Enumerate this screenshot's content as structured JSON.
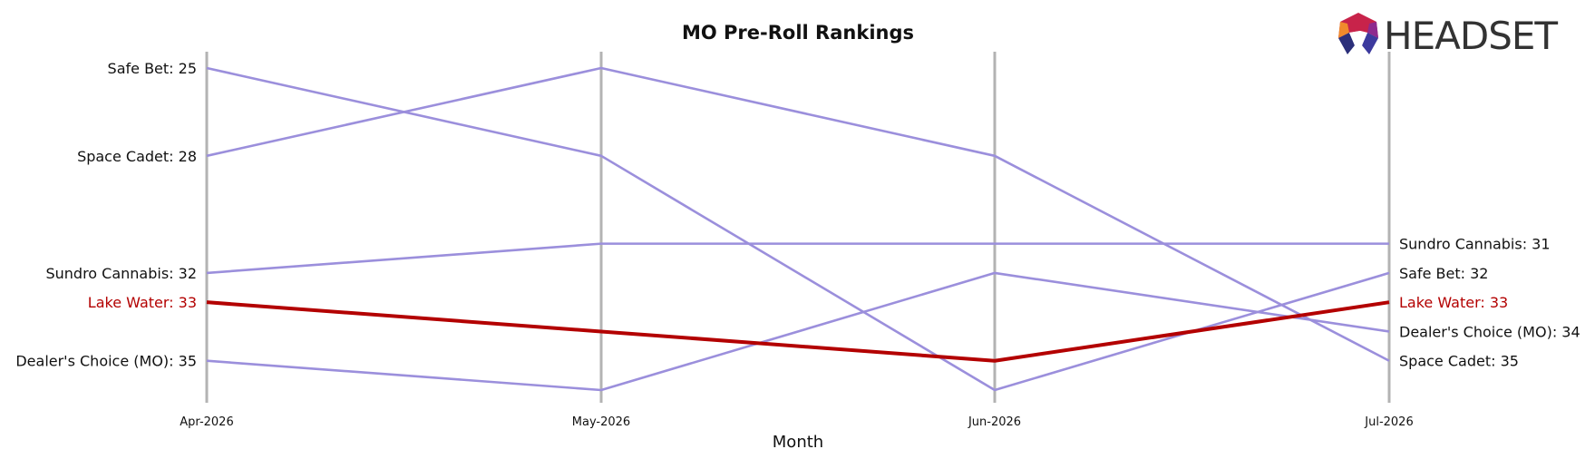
{
  "chart_data": {
    "type": "line",
    "title": "MO Pre-Roll Rankings",
    "xlabel": "Month",
    "ylabel": "",
    "x": [
      "Apr-2026",
      "May-2026",
      "Jun-2026",
      "Jul-2026"
    ],
    "ylim": [
      36.5,
      24.5
    ],
    "y_inverted": true,
    "grid": "vertical lines at each month",
    "highlight_series": "Lake Water",
    "colors": {
      "default": "#9b8fdc",
      "highlight": "#b30000",
      "vline": "#b3b3b3",
      "text": "#111111"
    },
    "series": [
      {
        "name": "Safe Bet",
        "values": [
          25,
          28,
          36,
          32
        ]
      },
      {
        "name": "Space Cadet",
        "values": [
          28,
          25,
          28,
          35
        ]
      },
      {
        "name": "Sundro Cannabis",
        "values": [
          32,
          31,
          31,
          31
        ]
      },
      {
        "name": "Lake Water",
        "values": [
          33,
          34,
          35,
          33
        ]
      },
      {
        "name": "Dealer's Choice (MO)",
        "values": [
          35,
          36,
          32,
          34
        ]
      }
    ],
    "left_labels": [
      {
        "series": "Safe Bet",
        "text": "Safe Bet: 25"
      },
      {
        "series": "Space Cadet",
        "text": "Space Cadet: 28"
      },
      {
        "series": "Sundro Cannabis",
        "text": "Sundro Cannabis: 32"
      },
      {
        "series": "Lake Water",
        "text": "Lake Water: 33"
      },
      {
        "series": "Dealer's Choice (MO)",
        "text": "Dealer's Choice (MO): 35"
      }
    ],
    "right_labels": [
      {
        "series": "Sundro Cannabis",
        "text": "Sundro Cannabis: 31"
      },
      {
        "series": "Safe Bet",
        "text": "Safe Bet: 32"
      },
      {
        "series": "Lake Water",
        "text": "Lake Water: 33"
      },
      {
        "series": "Dealer's Choice (MO)",
        "text": "Dealer's Choice (MO): 34"
      },
      {
        "series": "Space Cadet",
        "text": "Space Cadet: 35"
      }
    ]
  },
  "logo": {
    "text": "HEADSET",
    "icon": "headset-logo-icon"
  }
}
